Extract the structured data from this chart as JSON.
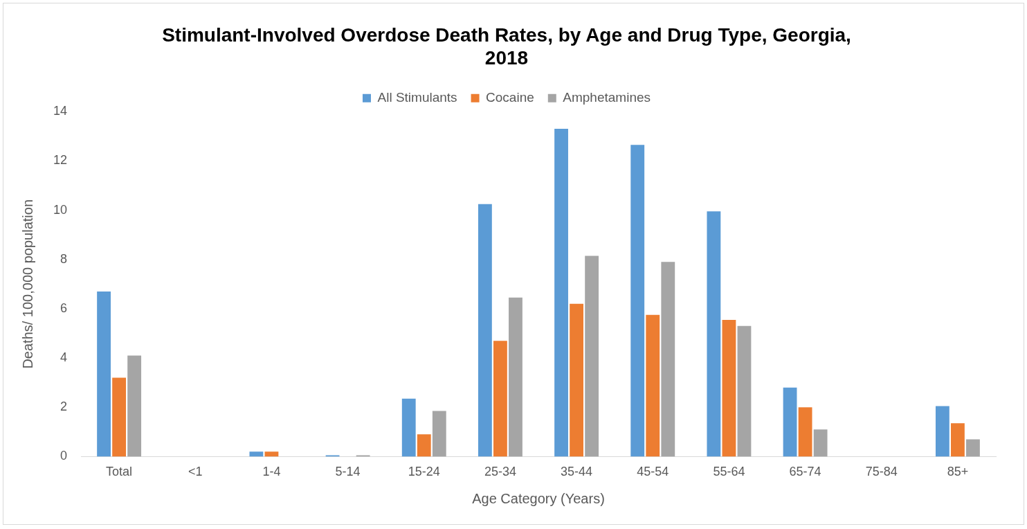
{
  "chart_data": {
    "type": "bar",
    "title": "Stimulant-Involved Overdose Death Rates, by Age and Drug Type, Georgia, 2018",
    "xlabel": "Age Category (Years)",
    "ylabel": "Deaths/ 100,000 population",
    "categories": [
      "Total",
      "<1",
      "1-4",
      "5-14",
      "15-24",
      "25-34",
      "35-44",
      "45-54",
      "55-64",
      "65-74",
      "75-84",
      "85+"
    ],
    "series": [
      {
        "name": "All Stimulants",
        "color": "#5b9bd5",
        "values": [
          6.7,
          0,
          0.2,
          0.05,
          2.35,
          10.25,
          13.3,
          12.65,
          9.95,
          2.8,
          0,
          2.05
        ]
      },
      {
        "name": "Cocaine",
        "color": "#ed7d31",
        "values": [
          3.2,
          0,
          0.2,
          0,
          0.9,
          4.7,
          6.2,
          5.75,
          5.55,
          2.0,
          0,
          1.35
        ]
      },
      {
        "name": "Amphetamines",
        "color": "#a5a5a5",
        "values": [
          4.1,
          0,
          0,
          0.05,
          1.85,
          6.45,
          8.15,
          7.9,
          5.3,
          1.1,
          0,
          0.7
        ]
      }
    ],
    "ylim": [
      0,
      14
    ],
    "yticks": [
      0,
      2,
      4,
      6,
      8,
      10,
      12,
      14
    ],
    "grid": false,
    "legend": "top"
  }
}
